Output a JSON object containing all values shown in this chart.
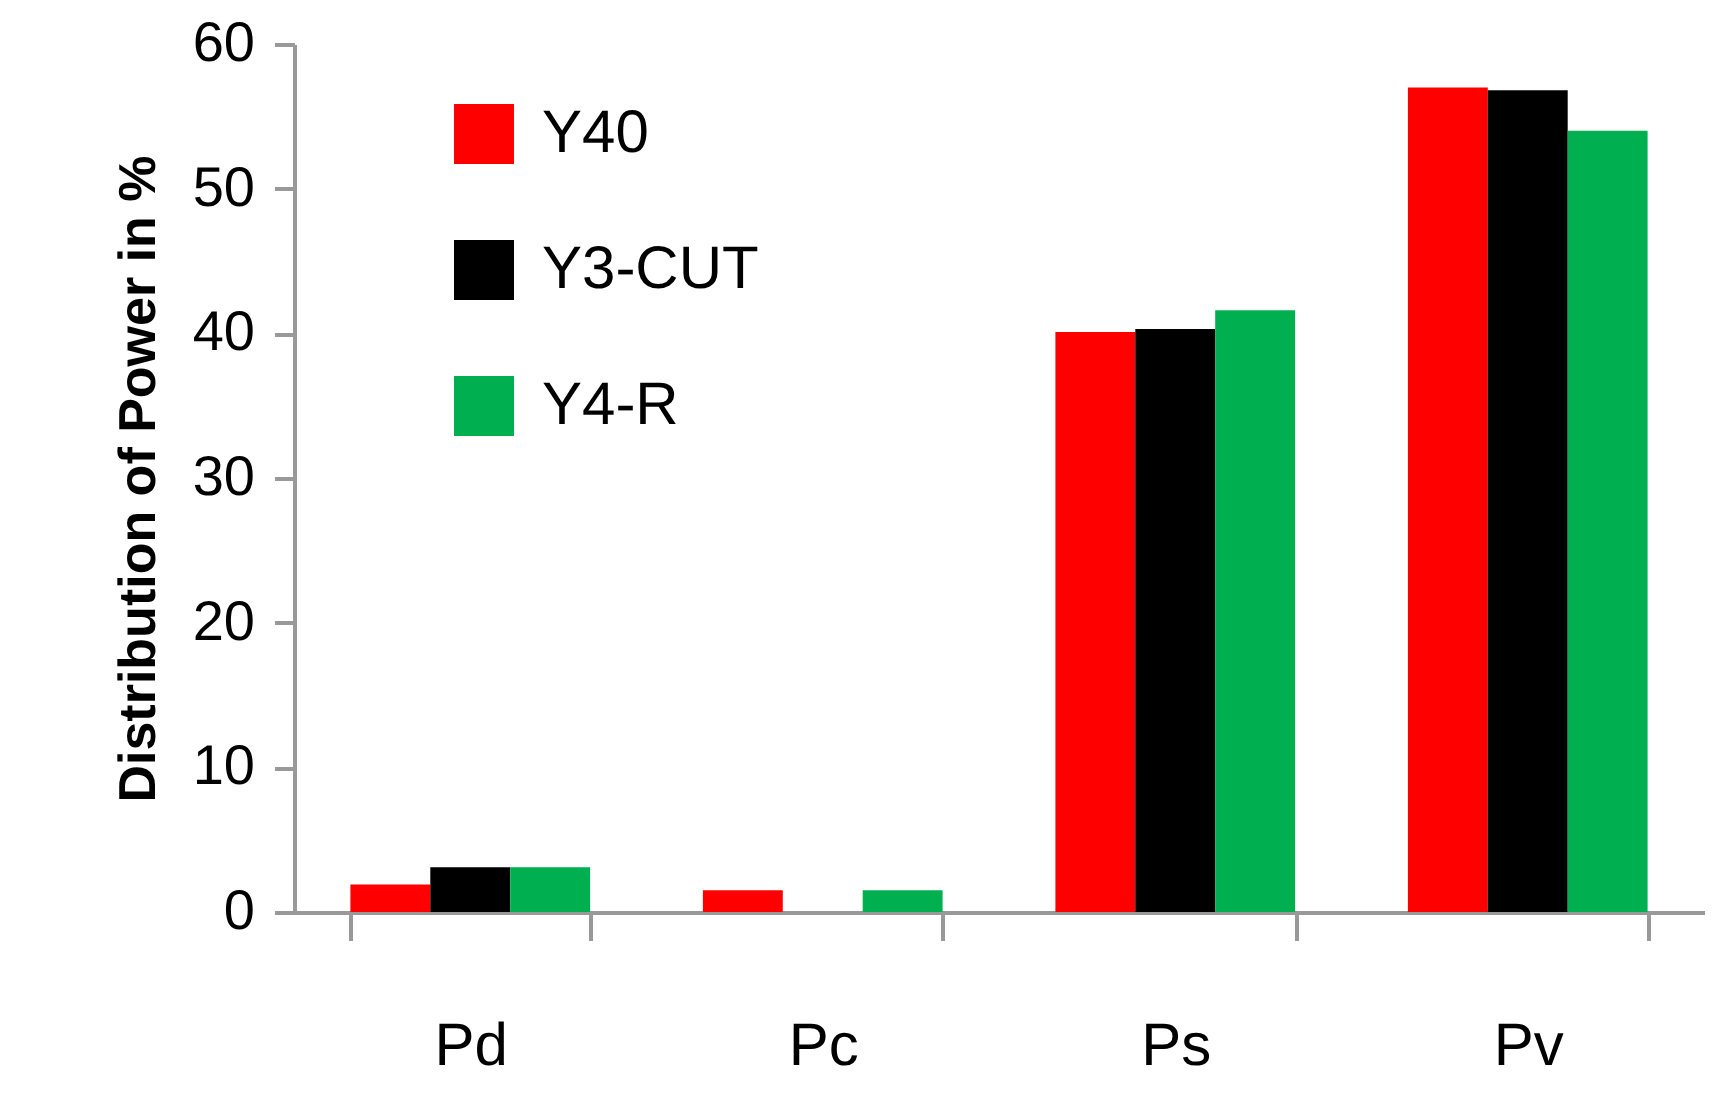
{
  "chart_data": {
    "type": "bar",
    "ylabel": "Distribution of  Power  in %",
    "categories": [
      "Pd",
      "Pc",
      "Ps",
      "Pv"
    ],
    "series": [
      {
        "name": "Y40",
        "color": "#ff0000",
        "values": [
          1.9,
          1.5,
          40.1,
          57.0
        ]
      },
      {
        "name": "Y3-CUT",
        "color": "#000000",
        "values": [
          3.1,
          0,
          40.3,
          56.8
        ]
      },
      {
        "name": "Y4-R",
        "color": "#00b050",
        "values": [
          3.1,
          1.5,
          41.6,
          54.0
        ]
      }
    ],
    "ylim": [
      0,
      60
    ],
    "yticks": [
      0,
      10,
      20,
      30,
      40,
      50,
      60
    ],
    "grid": false,
    "legend": "top left"
  }
}
